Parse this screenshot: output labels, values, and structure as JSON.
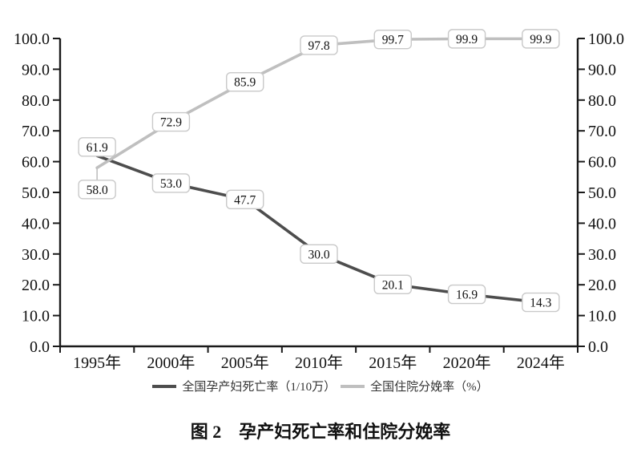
{
  "chart_data": {
    "type": "line",
    "title": "图 2　孕产妇死亡率和住院分娩率",
    "categories": [
      "1995年",
      "2000年",
      "2005年",
      "2010年",
      "2015年",
      "2020年",
      "2024年"
    ],
    "series": [
      {
        "name": "全国孕产妇死亡率（1/10万）",
        "values": [
          61.9,
          53.0,
          47.7,
          30.0,
          20.1,
          16.9,
          14.3
        ],
        "data_labels": [
          "61.9",
          "53.0",
          "47.7",
          "30.0",
          "20.1",
          "16.9",
          "14.3"
        ],
        "color": "#4d4d4d"
      },
      {
        "name": "全国住院分娩率（%）",
        "values": [
          58.0,
          72.9,
          85.9,
          97.8,
          99.7,
          99.9,
          99.9
        ],
        "data_labels": [
          "58.0",
          "72.9",
          "85.9",
          "97.8",
          "99.7",
          "99.9",
          "99.9"
        ],
        "color": "#bfbfbf"
      }
    ],
    "ylim": [
      0,
      100
    ],
    "ytick_step": 10,
    "ytick_labels": [
      "0.0",
      "10.0",
      "20.0",
      "30.0",
      "40.0",
      "50.0",
      "60.0",
      "70.0",
      "80.0",
      "90.0",
      "100.0"
    ],
    "yaxis": "dual-mirrored-left-right",
    "grid": false,
    "legend_position": "bottom",
    "data_labels_shown": true,
    "axis_color": "#1a1a1a",
    "label_box_fill": "#ffffff",
    "label_box_border": "#c9c9c9"
  }
}
